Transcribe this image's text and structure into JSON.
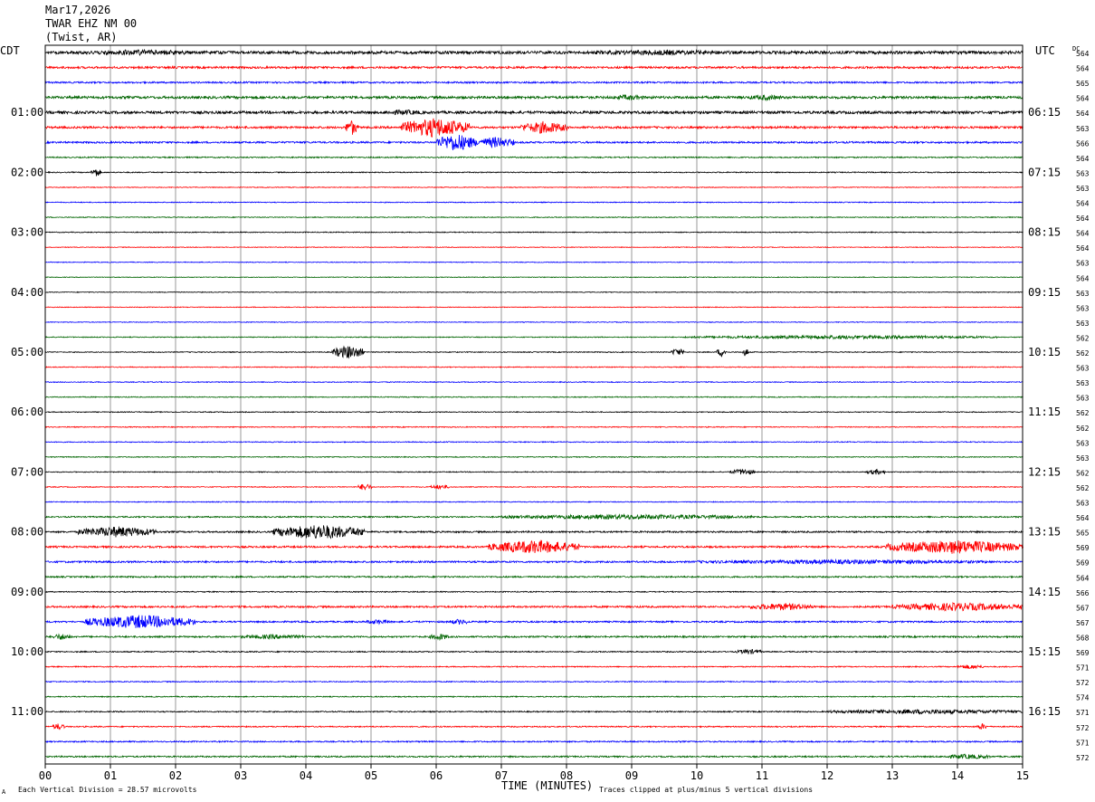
{
  "header": {
    "date": "Mar17,2026",
    "station": "TWAR EHZ NM 00",
    "location": "(Twist, AR)"
  },
  "labels": {
    "left_tz": "CDT",
    "right_tz": "UTC",
    "dc_header": "DC",
    "footer_left": "Each Vertical Division =   28.57 microvolts",
    "footer_right": "Traces clipped at plus/minus 5 vertical divisions",
    "footer_mark": "A"
  },
  "colors": {
    "trace_cycle": [
      "#000000",
      "#ff0000",
      "#0000ff",
      "#006400"
    ],
    "grid": "#808080"
  },
  "chart_data": {
    "type": "line",
    "title": "TWAR EHZ NM 00",
    "xlabel": "TIME (MINUTES)",
    "xlim": [
      0,
      15
    ],
    "x_ticks": [
      "00",
      "01",
      "02",
      "03",
      "04",
      "05",
      "06",
      "07",
      "08",
      "09",
      "10",
      "11",
      "12",
      "13",
      "14",
      "15"
    ],
    "rows_per_hour": 4,
    "row_count": 48,
    "left_hour_labels": [
      {
        "row": 4,
        "label": "01:00"
      },
      {
        "row": 8,
        "label": "02:00"
      },
      {
        "row": 12,
        "label": "03:00"
      },
      {
        "row": 16,
        "label": "04:00"
      },
      {
        "row": 20,
        "label": "05:00"
      },
      {
        "row": 24,
        "label": "06:00"
      },
      {
        "row": 28,
        "label": "07:00"
      },
      {
        "row": 32,
        "label": "08:00"
      },
      {
        "row": 36,
        "label": "09:00"
      },
      {
        "row": 40,
        "label": "10:00"
      },
      {
        "row": 44,
        "label": "11:00"
      }
    ],
    "right_hour_labels": [
      {
        "row": 4,
        "label": "06:15"
      },
      {
        "row": 8,
        "label": "07:15"
      },
      {
        "row": 12,
        "label": "08:15"
      },
      {
        "row": 16,
        "label": "09:15"
      },
      {
        "row": 20,
        "label": "10:15"
      },
      {
        "row": 24,
        "label": "11:15"
      },
      {
        "row": 28,
        "label": "12:15"
      },
      {
        "row": 32,
        "label": "13:15"
      },
      {
        "row": 36,
        "label": "14:15"
      },
      {
        "row": 40,
        "label": "15:15"
      },
      {
        "row": 44,
        "label": "16:15"
      }
    ],
    "dc_offsets": [
      "564",
      "564",
      "565",
      "564",
      "564",
      "563",
      "566",
      "564",
      "563",
      "563",
      "564",
      "564",
      "564",
      "564",
      "563",
      "564",
      "563",
      "563",
      "563",
      "562",
      "562",
      "563",
      "563",
      "563",
      "562",
      "562",
      "563",
      "563",
      "562",
      "562",
      "563",
      "564",
      "565",
      "569",
      "569",
      "564",
      "566",
      "567",
      "567",
      "568",
      "569",
      "571",
      "572",
      "574",
      "571",
      "572",
      "571",
      "572"
    ],
    "noise_levels": [
      1.0,
      0.7,
      0.55,
      0.85,
      0.9,
      0.7,
      0.6,
      0.4,
      0.35,
      0.25,
      0.3,
      0.3,
      0.3,
      0.25,
      0.25,
      0.25,
      0.25,
      0.25,
      0.25,
      0.3,
      0.3,
      0.3,
      0.3,
      0.3,
      0.3,
      0.3,
      0.3,
      0.3,
      0.3,
      0.3,
      0.3,
      0.45,
      0.55,
      0.6,
      0.6,
      0.5,
      0.35,
      0.6,
      0.55,
      0.55,
      0.4,
      0.35,
      0.35,
      0.35,
      0.4,
      0.4,
      0.45,
      0.5
    ],
    "events": [
      {
        "row": 0,
        "start": 0.6,
        "end": 2.3,
        "amp": 1.4
      },
      {
        "row": 0,
        "start": 8.4,
        "end": 10.5,
        "amp": 1.3
      },
      {
        "row": 3,
        "start": 8.7,
        "end": 9.2,
        "amp": 1.4
      },
      {
        "row": 3,
        "start": 10.8,
        "end": 11.3,
        "amp": 1.5
      },
      {
        "row": 4,
        "start": 5.2,
        "end": 5.8,
        "amp": 1.4
      },
      {
        "row": 5,
        "start": 4.6,
        "end": 4.8,
        "amp": 5
      },
      {
        "row": 5,
        "start": 5.45,
        "end": 6.5,
        "amp": 6.5
      },
      {
        "row": 5,
        "start": 7.3,
        "end": 8.0,
        "amp": 4
      },
      {
        "row": 6,
        "start": 6.0,
        "end": 6.6,
        "amp": 6
      },
      {
        "row": 6,
        "start": 6.6,
        "end": 7.2,
        "amp": 3.5
      },
      {
        "row": 8,
        "start": 0.7,
        "end": 0.85,
        "amp": 3
      },
      {
        "row": 19,
        "start": 9.8,
        "end": 14.6,
        "amp": 1.1
      },
      {
        "row": 20,
        "start": 4.4,
        "end": 4.9,
        "amp": 4.5
      },
      {
        "row": 20,
        "start": 9.6,
        "end": 9.8,
        "amp": 2.5
      },
      {
        "row": 20,
        "start": 10.3,
        "end": 10.45,
        "amp": 3
      },
      {
        "row": 20,
        "start": 10.7,
        "end": 10.8,
        "amp": 3
      },
      {
        "row": 28,
        "start": 10.5,
        "end": 10.9,
        "amp": 2
      },
      {
        "row": 28,
        "start": 12.6,
        "end": 12.9,
        "amp": 1.8
      },
      {
        "row": 29,
        "start": 4.8,
        "end": 5.0,
        "amp": 2.5
      },
      {
        "row": 29,
        "start": 5.9,
        "end": 6.2,
        "amp": 1.5
      },
      {
        "row": 31,
        "start": 7.0,
        "end": 10.9,
        "amp": 1.5
      },
      {
        "row": 32,
        "start": 0.5,
        "end": 1.7,
        "amp": 3.5
      },
      {
        "row": 32,
        "start": 3.5,
        "end": 4.9,
        "amp": 5
      },
      {
        "row": 33,
        "start": 6.8,
        "end": 8.2,
        "amp": 4.5
      },
      {
        "row": 33,
        "start": 12.9,
        "end": 15.0,
        "amp": 4.5
      },
      {
        "row": 34,
        "start": 10.0,
        "end": 14.5,
        "amp": 1.2
      },
      {
        "row": 37,
        "start": 10.8,
        "end": 11.8,
        "amp": 2.2
      },
      {
        "row": 37,
        "start": 13.0,
        "end": 15.0,
        "amp": 2.5
      },
      {
        "row": 38,
        "start": 0.6,
        "end": 2.3,
        "amp": 4.5
      },
      {
        "row": 38,
        "start": 4.9,
        "end": 5.3,
        "amp": 1.4
      },
      {
        "row": 38,
        "start": 6.2,
        "end": 6.5,
        "amp": 1.6
      },
      {
        "row": 39,
        "start": 0.1,
        "end": 0.4,
        "amp": 2
      },
      {
        "row": 39,
        "start": 3.0,
        "end": 4.0,
        "amp": 1.3
      },
      {
        "row": 39,
        "start": 5.9,
        "end": 6.2,
        "amp": 2
      },
      {
        "row": 40,
        "start": 10.6,
        "end": 11.0,
        "amp": 1.6
      },
      {
        "row": 41,
        "start": 14.0,
        "end": 14.4,
        "amp": 1.4
      },
      {
        "row": 44,
        "start": 12.0,
        "end": 15.0,
        "amp": 1.4
      },
      {
        "row": 45,
        "start": 0.1,
        "end": 0.3,
        "amp": 2
      },
      {
        "row": 45,
        "start": 14.3,
        "end": 14.45,
        "amp": 2
      },
      {
        "row": 47,
        "start": 13.8,
        "end": 14.5,
        "amp": 1.5
      }
    ]
  }
}
